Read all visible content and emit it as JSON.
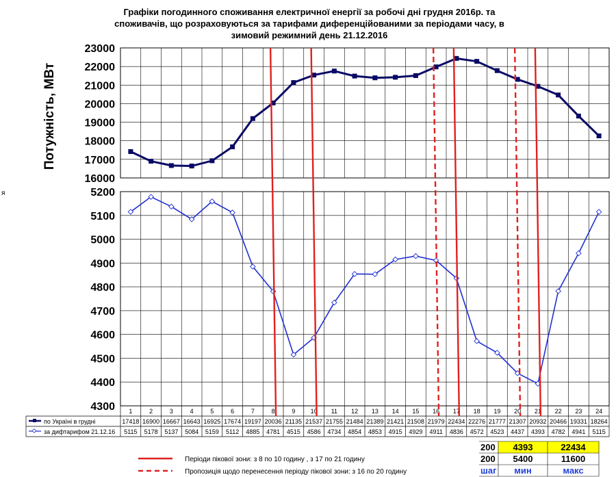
{
  "title_lines": [
    "Графіки погодинного споживання електричної енергії за робочі дні грудня 2016р. та",
    "споживачів, що розраховуються за тарифами диференційованими за періодами часу, в",
    "зимовий режимний день 21.12.2016"
  ],
  "side_mark": "я",
  "chart_data": [
    {
      "type": "line",
      "ylabel": "Потужність, МВт",
      "ylim": [
        16000,
        23000
      ],
      "yticks": [
        16000,
        17000,
        18000,
        19000,
        20000,
        21000,
        22000,
        23000
      ],
      "grid": true,
      "series": [
        {
          "name": "по Україні в грудні",
          "color": "#0a0a66",
          "values": [
            17418,
            16900,
            16667,
            16643,
            16925,
            17674,
            19197,
            20036,
            21135,
            21537,
            21755,
            21484,
            21389,
            21421,
            21508,
            21979,
            22434,
            22276,
            21777,
            21307,
            20932,
            20466,
            19331,
            18264
          ]
        }
      ]
    },
    {
      "type": "line",
      "ylim": [
        4300,
        5200
      ],
      "yticks": [
        4300,
        4400,
        4500,
        4600,
        4700,
        4800,
        4900,
        5000,
        5100,
        5200
      ],
      "grid": true,
      "x": [
        1,
        2,
        3,
        4,
        5,
        6,
        7,
        8,
        9,
        10,
        11,
        12,
        13,
        14,
        15,
        16,
        17,
        18,
        19,
        20,
        21,
        22,
        23,
        24
      ],
      "series": [
        {
          "name": "за дифтарифом 21.12.16",
          "color": "#1f2fd0",
          "values": [
            5115,
            5178,
            5137,
            5084,
            5159,
            5112,
            4885,
            4781,
            4515,
            4586,
            4734,
            4854,
            4853,
            4915,
            4929,
            4911,
            4836,
            4572,
            4523,
            4437,
            4393,
            4782,
            4941,
            5115
          ]
        }
      ],
      "peak_lines_solid": [
        8,
        10,
        17,
        21
      ],
      "peak_lines_dashed": [
        16,
        20
      ]
    }
  ],
  "legend": {
    "solid": "Періоди пікової зони: з 8 по 10 годину , з 17 по 21 годину",
    "dashed": "Пропозиція щодо перенесення періоду пікової зони: з 16 по 20 годину"
  },
  "params": {
    "rows": [
      [
        "200",
        "4393",
        "22434"
      ],
      [
        "200",
        "5400",
        "11600"
      ],
      [
        "шаг",
        "мин",
        "макс"
      ]
    ],
    "highlight_color": "#ffff00",
    "header_color": "#1f3fd9"
  }
}
